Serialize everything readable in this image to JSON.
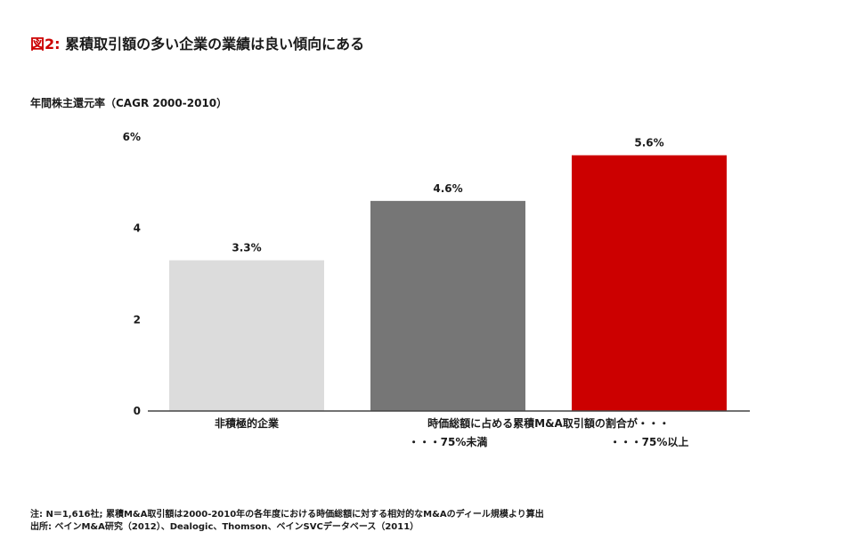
{
  "title": {
    "figure_label": "図2:",
    "text": "累積取引額の多い企業の業績は良い傾向にある"
  },
  "colors": {
    "accent": "#cc0000",
    "bar_light": "#dcdcdc",
    "bar_mid": "#767676",
    "bar_red": "#cc0000"
  },
  "chart_data": {
    "type": "bar",
    "ylabel": "年間株主還元率（CAGR 2000-2010）",
    "ylim": [
      0,
      6
    ],
    "yticks": [
      {
        "value": 0,
        "label": "0"
      },
      {
        "value": 2,
        "label": "2"
      },
      {
        "value": 4,
        "label": "4"
      },
      {
        "value": 6,
        "label": "6%"
      }
    ],
    "bars": [
      {
        "category": "非積極的企業",
        "value": 3.3,
        "label": "3.3%",
        "color": "#dcdcdc"
      },
      {
        "category": "・・・75%未満",
        "value": 4.6,
        "label": "4.6%",
        "color": "#767676"
      },
      {
        "category": "・・・75%以上",
        "value": 5.6,
        "label": "5.6%",
        "color": "#cc0000"
      }
    ],
    "group_label": "時価総額に占める累積M&A取引額の割合が・・・",
    "grid": false
  },
  "notes": {
    "note": "注: N＝1,616社; 累積M&A取引額は2000-2010年の各年度における時価総額に対する相対的なM&Aのディール規模より算出",
    "source": "出所: ベインM&A研究（2012）、Dealogic、Thomson、ベインSVCデータベース（2011）"
  }
}
